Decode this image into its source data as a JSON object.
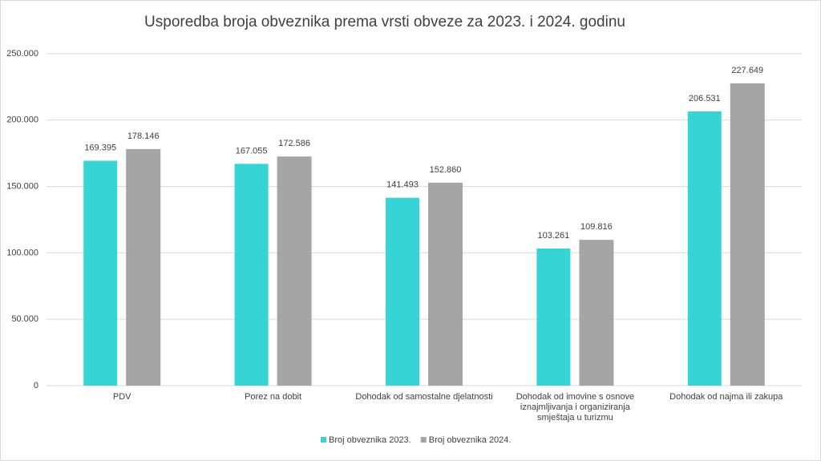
{
  "chart_data": {
    "type": "bar",
    "title": "Usporedba broja obveznika prema vrsti obveze za 2023. i 2024. godinu",
    "categories": [
      "PDV",
      "Porez na dobit",
      "Dohodak od samostalne djelatnosti",
      "Dohodak od imovine s osnove iznajmljivanja  i organiziranja smještaja u turizmu",
      "Dohodak od najma ili zakupa"
    ],
    "series": [
      {
        "name": "Broj obveznika 2023.",
        "color": "#36d4d4",
        "values": [
          169395,
          167055,
          141493,
          103261,
          206531
        ],
        "value_labels": [
          "169.395",
          "167.055",
          "141.493",
          "103.261",
          "206.531"
        ]
      },
      {
        "name": "Broj obveznika 2024.",
        "color": "#a5a5a5",
        "values": [
          178146,
          172586,
          152860,
          109816,
          227649
        ],
        "value_labels": [
          "178.146",
          "172.586",
          "152.860",
          "109.816",
          "227.649"
        ]
      }
    ],
    "ylim": [
      0,
      250000
    ],
    "yticks": [
      0,
      {
        "value": 50000,
        "label": "50.000"
      },
      {
        "value": 100000,
        "label": "100.000"
      },
      {
        "value": 150000,
        "label": "150.000"
      },
      {
        "value": 200000,
        "label": "200.000"
      },
      {
        "value": 250000,
        "label": "250.000"
      }
    ],
    "grid": true
  }
}
